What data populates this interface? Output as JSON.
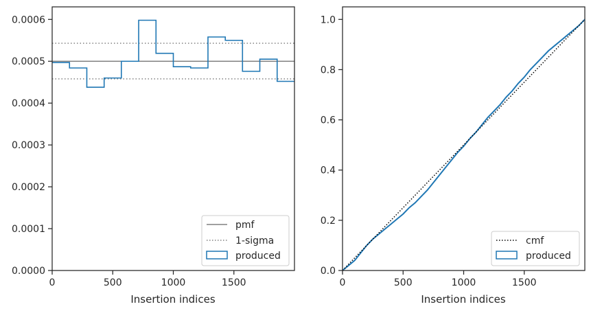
{
  "chart_data": [
    {
      "type": "line",
      "xlabel": "Insertion indices",
      "ylabel": "",
      "xlim": [
        0,
        2000
      ],
      "ylim": [
        0,
        0.00063
      ],
      "xticks": [
        0,
        500,
        1000,
        1500
      ],
      "xtick_labels": [
        "0",
        "500",
        "1000",
        "1500"
      ],
      "yticks": [
        0,
        0.0001,
        0.0002,
        0.0003,
        0.0004,
        0.0005,
        0.0006
      ],
      "ytick_labels": [
        "0.0000",
        "0.0001",
        "0.0002",
        "0.0003",
        "0.0004",
        "0.0005",
        "0.0006"
      ],
      "legend_position": "lower right",
      "grid": false,
      "series": [
        {
          "name": "pmf",
          "style": "solid",
          "color": "#808080",
          "y": 0.0005
        },
        {
          "name": "1-sigma",
          "style": "dotted",
          "color": "#808080",
          "y_values": [
            0.000458,
            0.000543
          ]
        },
        {
          "name": "produced",
          "style": "step-histogram",
          "color": "#1f77b4",
          "bin_edges": [
            0,
            143,
            286,
            429,
            571,
            714,
            857,
            1000,
            1143,
            1286,
            1429,
            1571,
            1714,
            1857,
            2000
          ],
          "values": [
            0.000497,
            0.000484,
            0.000438,
            0.00046,
            0.0005,
            0.000598,
            0.000519,
            0.000487,
            0.000484,
            0.000558,
            0.00055,
            0.000476,
            0.000505,
            0.000452
          ]
        }
      ]
    },
    {
      "type": "line",
      "xlabel": "Insertion indices",
      "ylabel": "",
      "xlim": [
        0,
        2000
      ],
      "ylim": [
        0,
        1.05
      ],
      "xticks": [
        0,
        500,
        1000,
        1500
      ],
      "xtick_labels": [
        "0",
        "500",
        "1000",
        "1500"
      ],
      "yticks": [
        0,
        0.2,
        0.4,
        0.6,
        0.8,
        1.0
      ],
      "ytick_labels": [
        "0.0",
        "0.2",
        "0.4",
        "0.6",
        "0.8",
        "1.0"
      ],
      "legend_position": "lower right",
      "grid": false,
      "series": [
        {
          "name": "cmf",
          "style": "dotted",
          "color": "#000000",
          "x": [
            0,
            2000
          ],
          "y": [
            0,
            1
          ]
        },
        {
          "name": "produced",
          "style": "solid",
          "color": "#1f77b4",
          "x": [
            0,
            50,
            100,
            150,
            200,
            250,
            300,
            350,
            400,
            450,
            500,
            550,
            600,
            650,
            700,
            750,
            800,
            850,
            900,
            950,
            1000,
            1050,
            1100,
            1150,
            1200,
            1250,
            1300,
            1350,
            1400,
            1450,
            1500,
            1550,
            1600,
            1650,
            1700,
            1750,
            1800,
            1850,
            1900,
            1950,
            2000
          ],
          "y": [
            0,
            0.02,
            0.04,
            0.07,
            0.1,
            0.125,
            0.145,
            0.165,
            0.185,
            0.205,
            0.225,
            0.25,
            0.27,
            0.295,
            0.32,
            0.35,
            0.38,
            0.41,
            0.44,
            0.47,
            0.495,
            0.525,
            0.55,
            0.58,
            0.61,
            0.635,
            0.66,
            0.69,
            0.715,
            0.745,
            0.77,
            0.8,
            0.825,
            0.85,
            0.875,
            0.895,
            0.915,
            0.935,
            0.955,
            0.975,
            1.0
          ]
        }
      ]
    }
  ]
}
